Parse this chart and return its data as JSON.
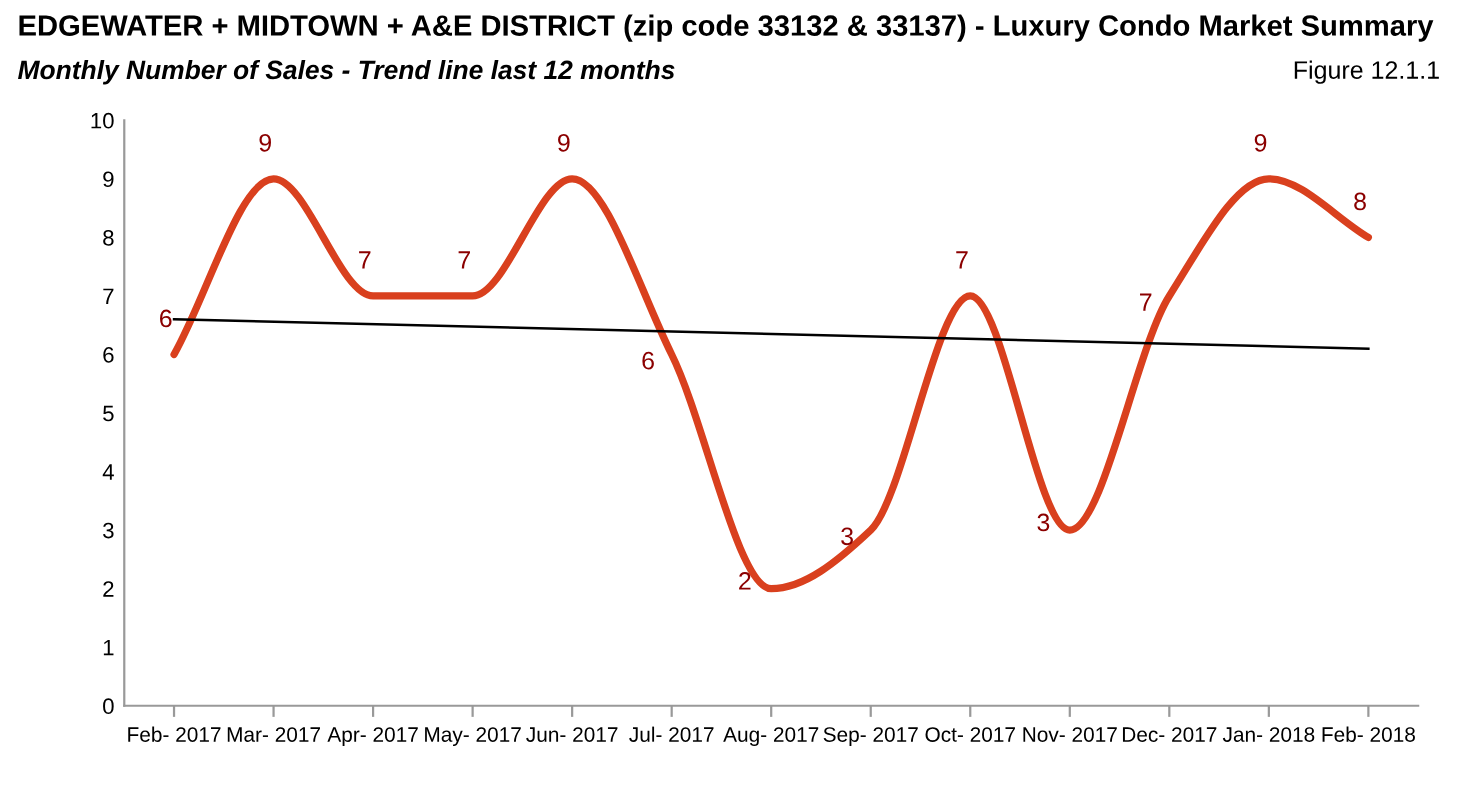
{
  "chart_data": {
    "type": "line",
    "title": "EDGEWATER + MIDTOWN + A&E DISTRICT (zip code 33132 & 33137) - Luxury Condo Market Summary",
    "subtitle": "Monthly Number of Sales - Trend line last 12 months",
    "annotations": [
      "Figure 12.1.1"
    ],
    "categories": [
      "Feb- 2017",
      "Mar- 2017",
      "Apr- 2017",
      "May- 2017",
      "Jun- 2017",
      "Jul- 2017",
      "Aug- 2017",
      "Sep- 2017",
      "Oct- 2017",
      "Nov- 2017",
      "Dec- 2017",
      "Jan- 2018",
      "Feb- 2018"
    ],
    "series": [
      {
        "color": "#d9401e",
        "values": [
          6,
          9,
          7,
          7,
          9,
          6,
          2,
          3,
          7,
          3,
          7,
          9,
          8
        ],
        "value_labels": [
          "6",
          "9",
          "7",
          "7",
          "9",
          "6",
          "2",
          "3",
          "7",
          "3",
          "7",
          "9",
          "8"
        ]
      },
      {
        "color": "#000000",
        "x": [
          "Feb- 2017",
          "Feb- 2018"
        ],
        "values": [
          6.6,
          6.1
        ]
      }
    ],
    "ylim": [
      0,
      10
    ],
    "yticks": [
      0,
      1,
      2,
      3,
      4,
      5,
      6,
      7,
      8,
      9,
      10
    ],
    "grid": false,
    "marker": "none",
    "line_style": "solid"
  }
}
